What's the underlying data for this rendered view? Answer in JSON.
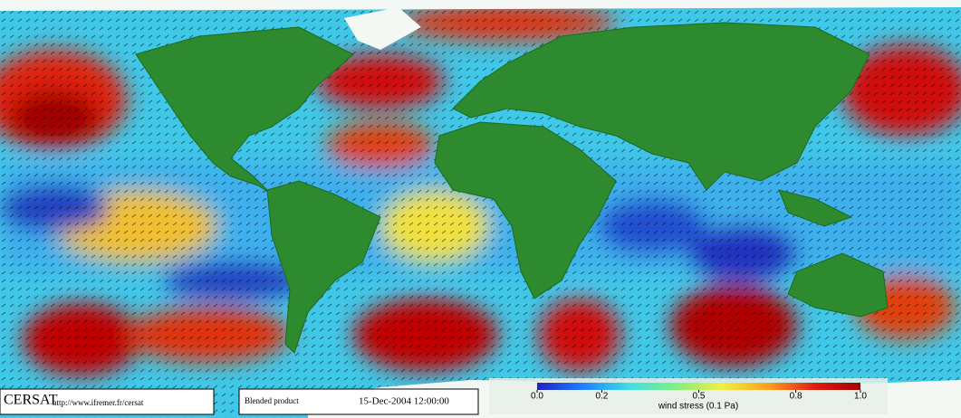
{
  "footer": {
    "logo": "CERSAT",
    "url": "http://www.ifremer.fr/cersat",
    "product": "Blended product",
    "date": "15-Dec-2004 12:00:00"
  },
  "colorbar": {
    "label": "wind stress (0.1 Pa)",
    "range": [
      0,
      1
    ],
    "ticks": [
      {
        "value": 0,
        "label": "0.0"
      },
      {
        "value": 0.2,
        "label": "0.2"
      },
      {
        "value": 0.5,
        "label": "0.5"
      },
      {
        "value": 0.8,
        "label": "0.8"
      },
      {
        "value": 1,
        "label": "1.0"
      }
    ],
    "colors": [
      "#2020c0",
      "#2080ff",
      "#40e0e0",
      "#80f080",
      "#f0f040",
      "#ffa020",
      "#e02010",
      "#a00000"
    ]
  }
}
